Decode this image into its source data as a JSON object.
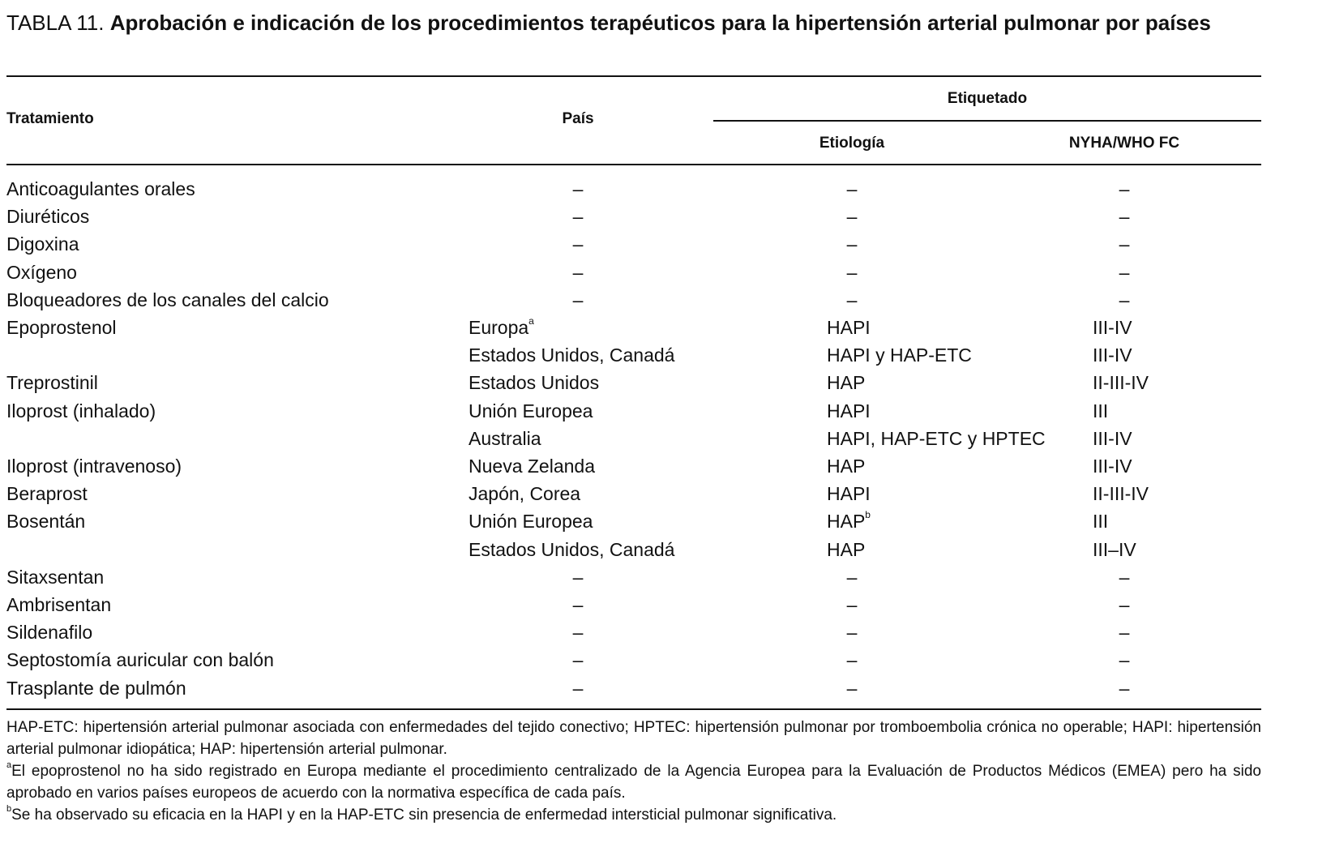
{
  "title": {
    "label": "TABLA 11.",
    "text": "Aprobación e indicación de los procedimientos terapéuticos para la hipertensión arterial pulmonar por países"
  },
  "table": {
    "headers": {
      "treatment": "Tratamiento",
      "country": "País",
      "labeled": "Etiquetado",
      "etiology": "Etiología",
      "nyha": "NYHA/WHO FC"
    },
    "rows": [
      [
        "Anticoagulantes orales",
        "–",
        "–",
        "–"
      ],
      [
        "Diuréticos",
        "–",
        "–",
        "–"
      ],
      [
        "Digoxina",
        "–",
        "–",
        "–"
      ],
      [
        "Oxígeno",
        "–",
        "–",
        "–"
      ],
      [
        "Bloqueadores de los canales del calcio",
        "–",
        "–",
        "–"
      ],
      [
        "Epoprostenol",
        {
          "text": "Europa",
          "sup": "a"
        },
        "HAPI",
        "III-IV"
      ],
      [
        null,
        "Estados Unidos, Canadá",
        "HAPI y HAP-ETC",
        "III-IV"
      ],
      [
        "Treprostinil",
        "Estados Unidos",
        "HAP",
        "II-III-IV"
      ],
      [
        "Iloprost (inhalado)",
        "Unión Europea",
        "HAPI",
        "III"
      ],
      [
        null,
        "Australia",
        "HAPI, HAP-ETC y HPTEC",
        "III-IV"
      ],
      [
        "Iloprost (intravenoso)",
        "Nueva Zelanda",
        "HAP",
        "III-IV"
      ],
      [
        "Beraprost",
        "Japón, Corea",
        "HAPI",
        "II-III-IV"
      ],
      [
        "Bosentán",
        "Unión Europea",
        {
          "text": "HAP",
          "sup": "b"
        },
        "III"
      ],
      [
        null,
        "Estados Unidos, Canadá",
        "HAP",
        "III–IV"
      ],
      [
        "Sitaxsentan",
        "–",
        "–",
        "–"
      ],
      [
        "Ambrisentan",
        "–",
        "–",
        "–"
      ],
      [
        "Sildenafilo",
        "–",
        "–",
        "–"
      ],
      [
        "Septostomía auricular con balón",
        "–",
        "–",
        "–"
      ],
      [
        "Trasplante de pulmón",
        "–",
        "–",
        "–"
      ]
    ]
  },
  "footnotes": {
    "abbreviations": "HAP-ETC: hipertensión arterial pulmonar asociada con enfermedades del tejido conectivo; HPTEC: hipertensión pulmonar por tromboembolia crónica no operable; HAPI: hipertensión arterial pulmonar idiopática; HAP: hipertensión arterial pulmonar.",
    "notes": [
      {
        "mark": "a",
        "text": "El epoprostenol no ha sido registrado en Europa mediante el procedimiento centralizado de la Agencia Europea para la Evaluación de Productos Médicos (EMEA) pero ha sido aprobado en varios países europeos de acuerdo con la normativa específica de cada país."
      },
      {
        "mark": "b",
        "text": "Se ha observado su eficacia en la HAPI y en la HAP-ETC sin presencia de enfermedad intersticial pulmonar significativa."
      }
    ]
  }
}
